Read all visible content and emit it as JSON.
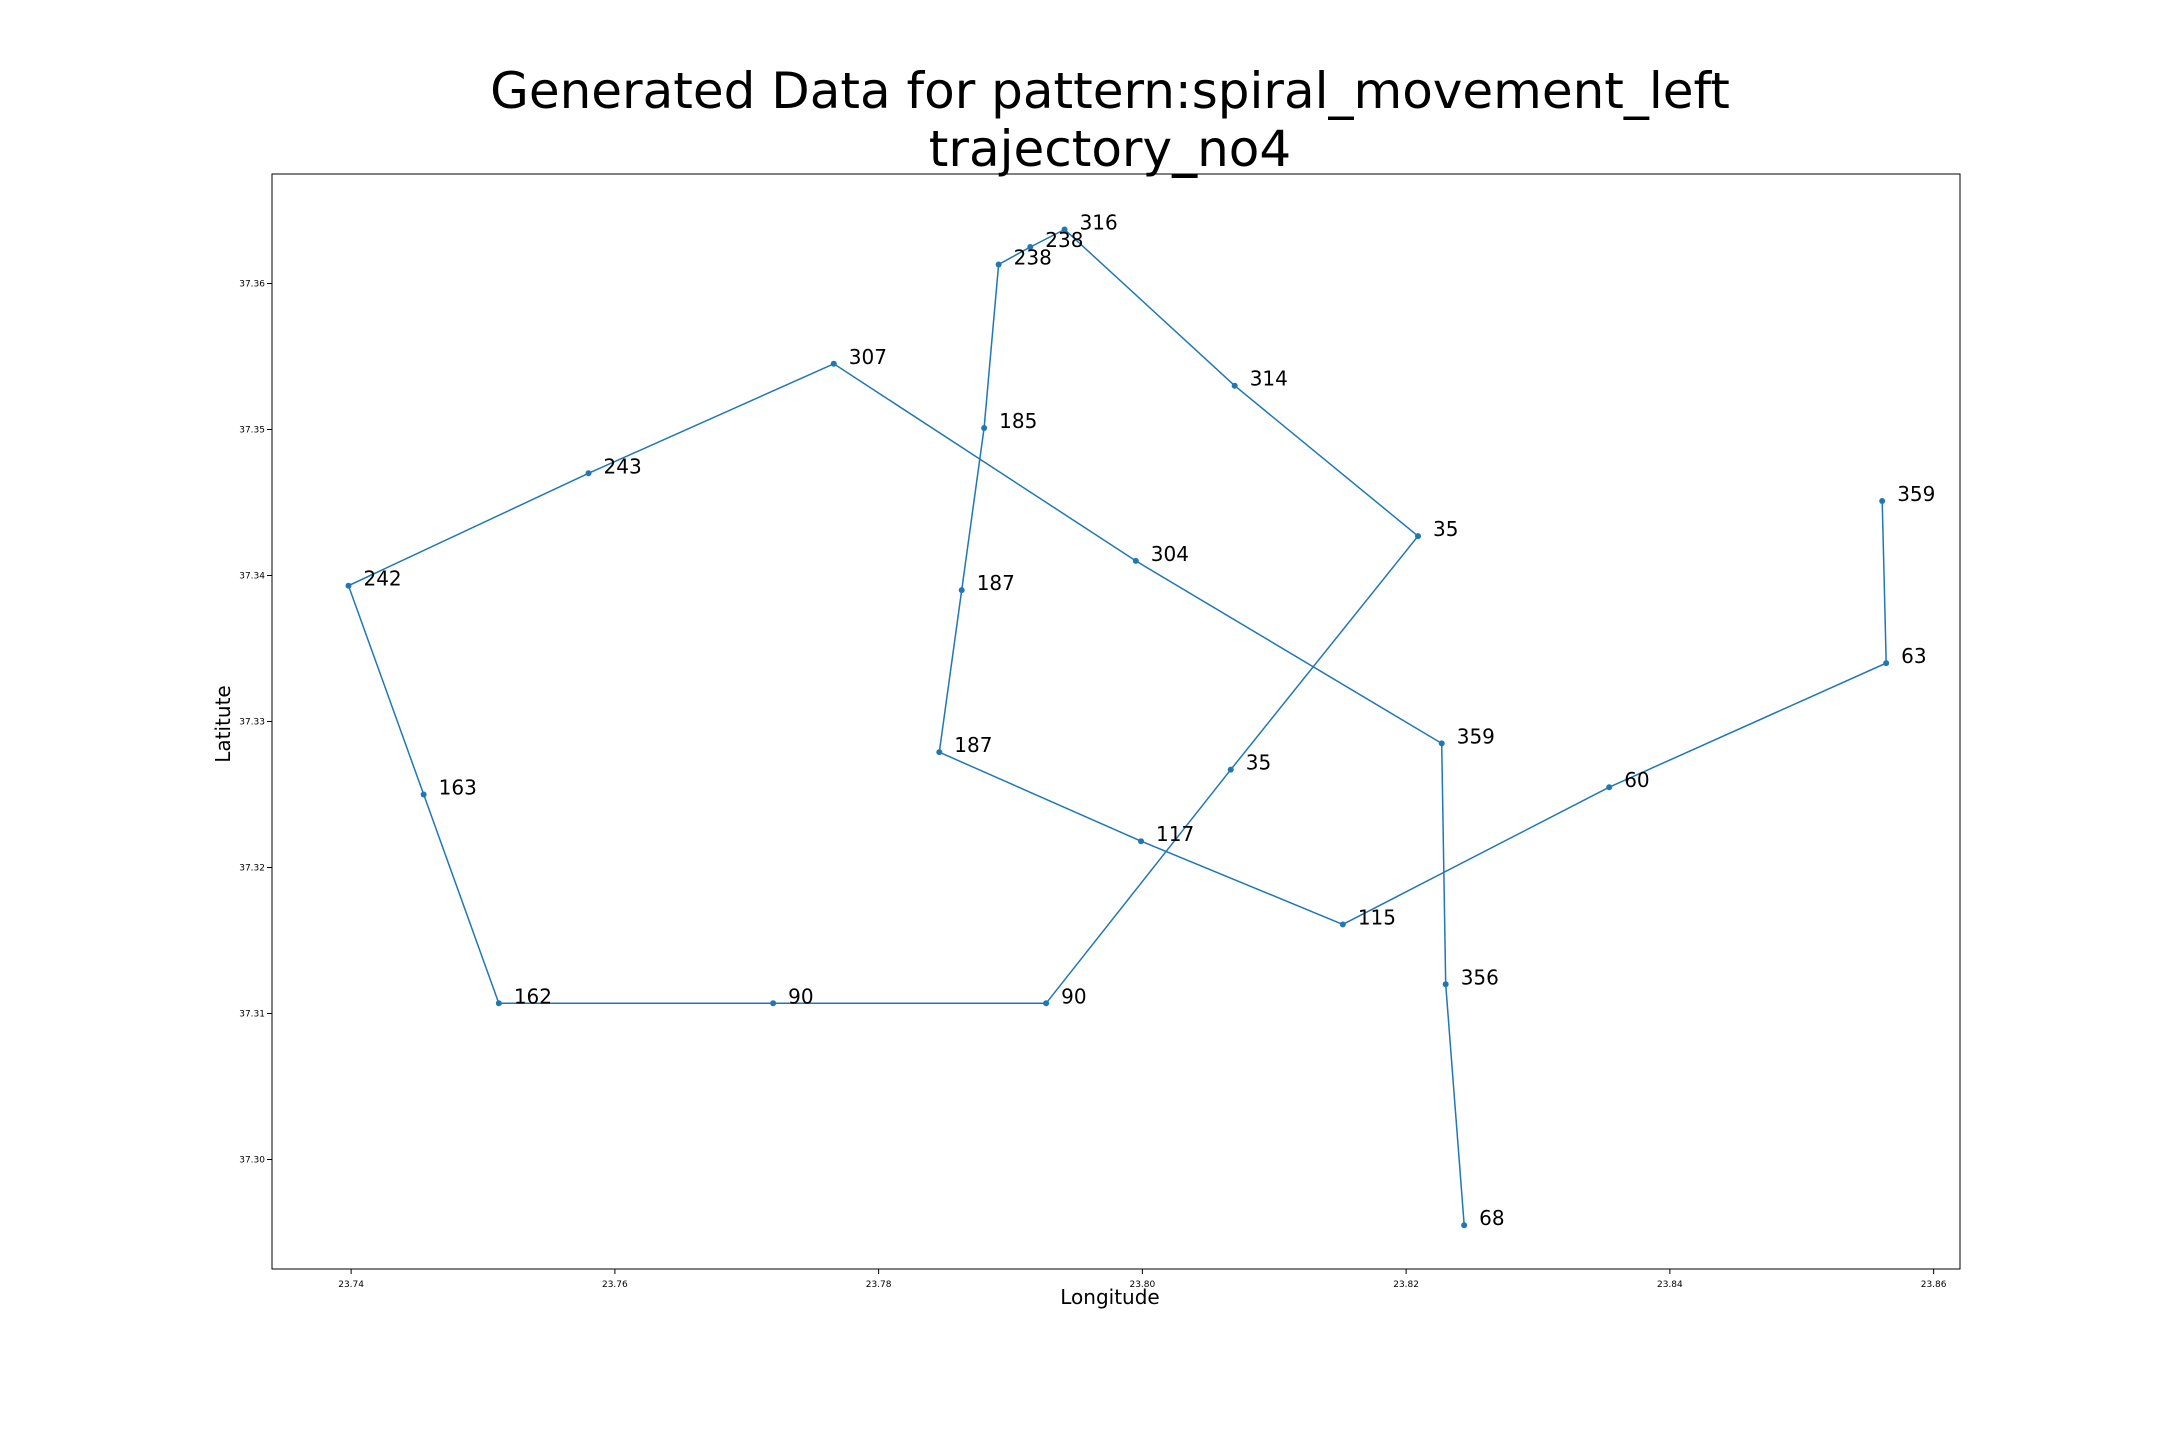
{
  "chart_data": {
    "type": "line",
    "title_line1": "Generated Data for pattern:spiral_movement_left",
    "title_line2": "trajectory_no4",
    "xlabel": "Longitude",
    "ylabel": "Latitute",
    "xlim": [
      23.734,
      23.862
    ],
    "ylim": [
      37.2925,
      37.3675
    ],
    "xticks": [
      23.74,
      23.76,
      23.78,
      23.8,
      23.82,
      23.84,
      23.86
    ],
    "xtick_labels": [
      "23.74",
      "23.76",
      "23.78",
      "23.80",
      "23.82",
      "23.84",
      "23.86"
    ],
    "yticks": [
      37.3,
      37.31,
      37.32,
      37.33,
      37.34,
      37.35,
      37.36
    ],
    "ytick_labels": [
      "37.30",
      "37.31",
      "37.32",
      "37.33",
      "37.34",
      "37.35",
      "37.36"
    ],
    "grid": false,
    "color": "#1f77b4",
    "series": [
      {
        "points": [
          {
            "x": 23.8244,
            "y": 37.2955,
            "label": "68"
          },
          {
            "x": 23.823,
            "y": 37.312,
            "label": "356"
          },
          {
            "x": 23.8227,
            "y": 37.3285,
            "label": "359"
          },
          {
            "x": 23.7995,
            "y": 37.341,
            "label": "304"
          },
          {
            "x": 23.7766,
            "y": 37.3545,
            "label": "307"
          },
          {
            "x": 23.758,
            "y": 37.347,
            "label": "243"
          },
          {
            "x": 23.7398,
            "y": 37.3393,
            "label": "242"
          },
          {
            "x": 23.7455,
            "y": 37.325,
            "label": "163"
          },
          {
            "x": 23.7512,
            "y": 37.3107,
            "label": "162"
          },
          {
            "x": 23.772,
            "y": 37.3107,
            "label": "90"
          },
          {
            "x": 23.7927,
            "y": 37.3107,
            "label": "90"
          },
          {
            "x": 23.8067,
            "y": 37.3267,
            "label": "35"
          },
          {
            "x": 23.8209,
            "y": 37.3427,
            "label": "35"
          },
          {
            "x": 23.807,
            "y": 37.353,
            "label": "314"
          },
          {
            "x": 23.7941,
            "y": 37.3637,
            "label": "316"
          },
          {
            "x": 23.7915,
            "y": 37.3625,
            "label": "238"
          },
          {
            "x": 23.7891,
            "y": 37.3613,
            "label": "238"
          },
          {
            "x": 23.788,
            "y": 37.3501,
            "label": "185"
          },
          {
            "x": 23.7863,
            "y": 37.339,
            "label": "187"
          },
          {
            "x": 23.7846,
            "y": 37.3279,
            "label": "187"
          },
          {
            "x": 23.7999,
            "y": 37.3218,
            "label": "117"
          },
          {
            "x": 23.8152,
            "y": 37.3161,
            "label": "115"
          },
          {
            "x": 23.8354,
            "y": 37.3255,
            "label": "60"
          },
          {
            "x": 23.8564,
            "y": 37.334,
            "label": "63"
          },
          {
            "x": 23.8561,
            "y": 37.3451,
            "label": "359"
          }
        ]
      }
    ]
  }
}
